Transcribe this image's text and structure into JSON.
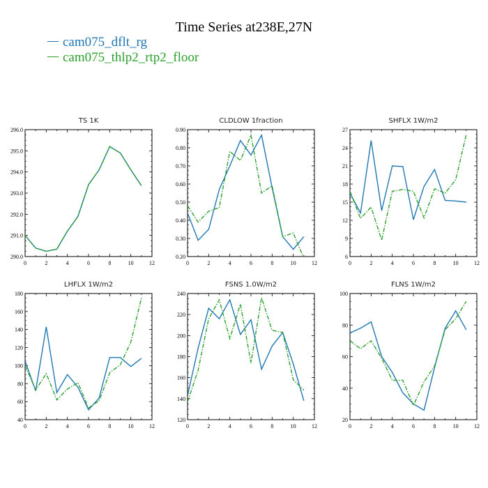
{
  "title": "Time Series at238E,27N",
  "legend": [
    {
      "name": "cam075_dflt_rg",
      "color": "#1f77b4"
    },
    {
      "name": "cam075_thlp2_rtp2_floor",
      "color": "#2ca02c"
    }
  ],
  "chart_data": [
    {
      "type": "line",
      "title": "TS   1K",
      "xlim": [
        0,
        12
      ],
      "ylim": [
        290,
        296
      ],
      "xticks": [
        0,
        2,
        4,
        6,
        8,
        10,
        12
      ],
      "yticks": [
        "290.0",
        "291.0",
        "292.0",
        "293.0",
        "294.0",
        "295.0",
        "296.0"
      ],
      "x": [
        0,
        1,
        2,
        3,
        4,
        5,
        6,
        7,
        8,
        9,
        10,
        11
      ],
      "series": [
        {
          "name": "cam075_dflt_rg",
          "values": [
            291.0,
            290.4,
            290.25,
            290.35,
            291.2,
            291.9,
            293.4,
            294.1,
            295.2,
            294.9,
            294.1,
            293.35
          ]
        },
        {
          "name": "cam075_thlp2_rtp2_floor",
          "values": [
            291.0,
            290.4,
            290.25,
            290.35,
            291.2,
            291.9,
            293.4,
            294.1,
            295.2,
            294.9,
            294.1,
            293.35
          ]
        }
      ]
    },
    {
      "type": "line",
      "title": "CLDLOW   1fraction",
      "xlim": [
        0,
        12
      ],
      "ylim": [
        0.2,
        0.9
      ],
      "xticks": [
        0,
        2,
        4,
        6,
        8,
        10,
        12
      ],
      "yticks": [
        "0.20",
        "0.30",
        "0.40",
        "0.50",
        "0.60",
        "0.70",
        "0.80",
        "0.90"
      ],
      "x": [
        0,
        1,
        2,
        3,
        4,
        5,
        6,
        7,
        8,
        9,
        10,
        11
      ],
      "series": [
        {
          "name": "cam075_dflt_rg",
          "values": [
            0.44,
            0.29,
            0.35,
            0.57,
            0.7,
            0.84,
            0.76,
            0.87,
            0.58,
            0.31,
            0.24,
            0.31
          ]
        },
        {
          "name": "cam075_thlp2_rtp2_floor",
          "values": [
            0.48,
            0.39,
            0.45,
            0.47,
            0.78,
            0.73,
            0.87,
            0.55,
            0.59,
            0.31,
            0.33,
            0.19
          ]
        }
      ]
    },
    {
      "type": "line",
      "title": "SHFLX   1W/m2",
      "xlim": [
        0,
        12
      ],
      "ylim": [
        6,
        27
      ],
      "xticks": [
        0,
        2,
        4,
        6,
        8,
        10,
        12
      ],
      "yticks": [
        "6",
        "9",
        "12",
        "15",
        "18",
        "21",
        "24",
        "27"
      ],
      "x": [
        0,
        1,
        2,
        3,
        4,
        5,
        6,
        7,
        8,
        9,
        10,
        11
      ],
      "series": [
        {
          "name": "cam075_dflt_rg",
          "values": [
            16.5,
            13.2,
            25.2,
            13.6,
            21.0,
            20.9,
            12.1,
            17.6,
            20.4,
            15.3,
            15.2,
            15.0
          ]
        },
        {
          "name": "cam075_thlp2_rtp2_floor",
          "values": [
            16.8,
            12.3,
            14.2,
            8.7,
            16.8,
            17.1,
            16.8,
            12.4,
            17.2,
            16.5,
            18.7,
            26.2
          ]
        }
      ]
    },
    {
      "type": "line",
      "title": "LHFLX   1W/m2",
      "xlim": [
        0,
        12
      ],
      "ylim": [
        40,
        180
      ],
      "xticks": [
        0,
        2,
        4,
        6,
        8,
        10,
        12
      ],
      "yticks": [
        "40",
        "60",
        "80",
        "100",
        "120",
        "140",
        "160",
        "180"
      ],
      "x": [
        0,
        1,
        2,
        3,
        4,
        5,
        6,
        7,
        8,
        9,
        10,
        11
      ],
      "series": [
        {
          "name": "cam075_dflt_rg",
          "values": [
            105,
            72,
            143,
            70,
            90,
            76,
            51,
            64,
            109,
            109,
            99,
            108
          ]
        },
        {
          "name": "cam075_thlp2_rtp2_floor",
          "values": [
            100,
            73,
            91,
            62,
            74,
            81,
            53,
            61,
            92,
            101,
            126,
            175
          ]
        }
      ]
    },
    {
      "type": "line",
      "title": "FSNS   1.0W/m2",
      "xlim": [
        0,
        12
      ],
      "ylim": [
        120,
        240
      ],
      "xticks": [
        0,
        2,
        4,
        6,
        8,
        10,
        12
      ],
      "yticks": [
        "120",
        "140",
        "160",
        "180",
        "200",
        "220",
        "240"
      ],
      "x": [
        0,
        1,
        2,
        3,
        4,
        5,
        6,
        7,
        8,
        9,
        10,
        11
      ],
      "series": [
        {
          "name": "cam075_dflt_rg",
          "values": [
            143,
            188,
            226,
            216,
            234,
            201,
            215,
            168,
            190,
            203,
            173,
            138
          ]
        },
        {
          "name": "cam075_thlp2_rtp2_floor",
          "values": [
            137,
            167,
            216,
            234,
            197,
            230,
            174,
            236,
            205,
            203,
            158,
            148
          ]
        }
      ]
    },
    {
      "type": "line",
      "title": "FLNS   1W/m2",
      "xlim": [
        0,
        12
      ],
      "ylim": [
        20,
        100
      ],
      "xticks": [
        0,
        2,
        4,
        6,
        8,
        10,
        12
      ],
      "yticks": [
        "20",
        "40",
        "60",
        "80",
        "100"
      ],
      "x": [
        0,
        1,
        2,
        3,
        4,
        5,
        6,
        7,
        8,
        9,
        10,
        11
      ],
      "series": [
        {
          "name": "cam075_dflt_rg",
          "values": [
            75,
            78,
            82,
            60,
            50,
            37,
            30,
            26,
            53,
            78,
            89,
            77
          ]
        },
        {
          "name": "cam075_thlp2_rtp2_floor",
          "values": [
            70,
            65,
            70,
            59,
            45,
            45,
            29,
            44,
            54,
            77,
            84,
            95
          ]
        }
      ]
    }
  ]
}
